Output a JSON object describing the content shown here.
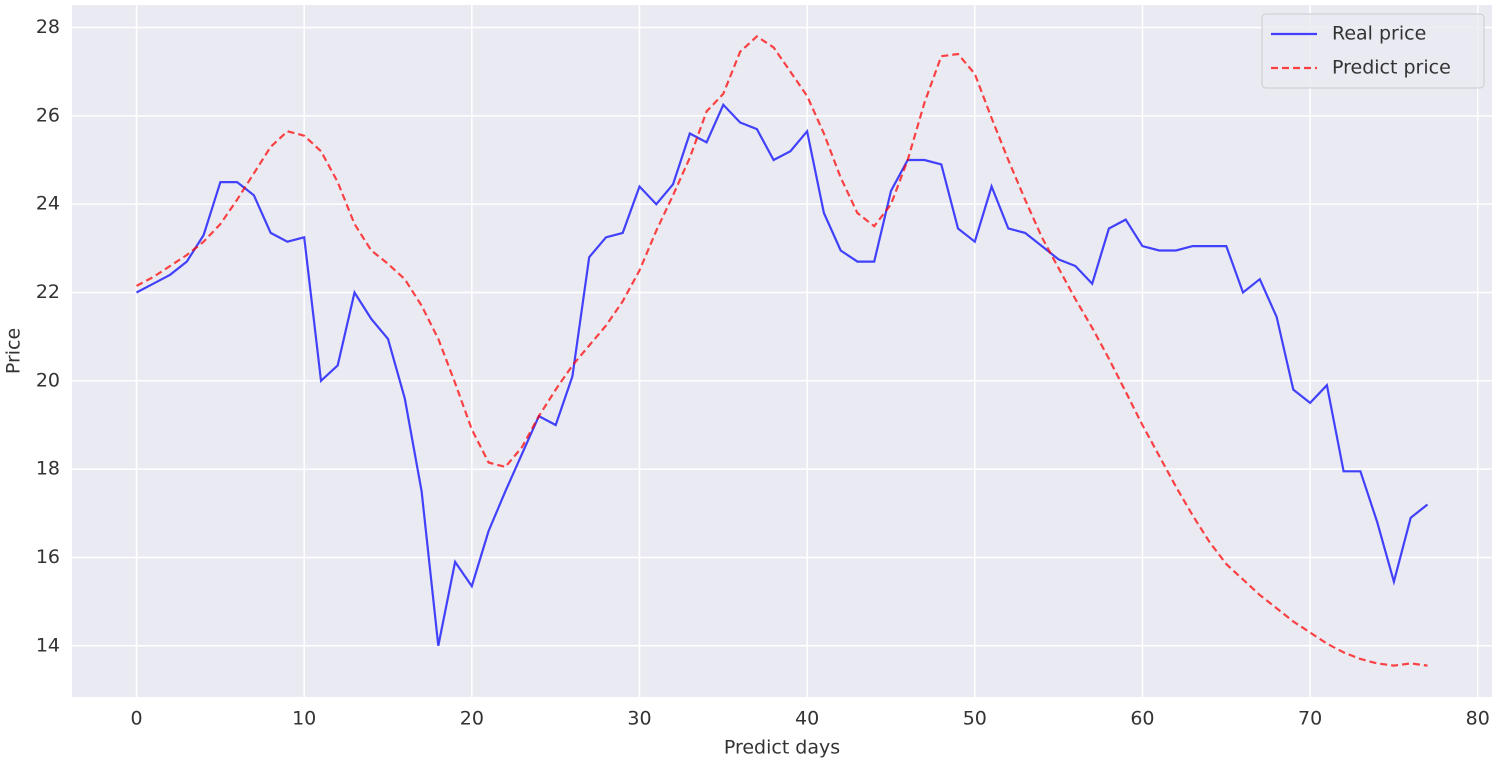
{
  "chart_data": {
    "type": "line",
    "x_label": "Predict days",
    "y_label": "Price",
    "x": [
      0,
      1,
      2,
      3,
      4,
      5,
      6,
      7,
      8,
      9,
      10,
      11,
      12,
      13,
      14,
      15,
      16,
      17,
      18,
      19,
      20,
      21,
      22,
      23,
      24,
      25,
      26,
      27,
      28,
      29,
      30,
      31,
      32,
      33,
      34,
      35,
      36,
      37,
      38,
      39,
      40,
      41,
      42,
      43,
      44,
      45,
      46,
      47,
      48,
      49,
      50,
      51,
      52,
      53,
      54,
      55,
      56,
      57,
      58,
      59,
      60,
      61,
      62,
      63,
      64,
      65,
      66,
      67,
      68,
      69,
      70,
      71,
      72,
      73,
      74,
      75,
      76,
      77
    ],
    "series": [
      {
        "name": "Real price",
        "color": "#0000ff",
        "dash": false,
        "values": [
          22.0,
          22.2,
          22.4,
          22.7,
          23.3,
          24.5,
          24.5,
          24.2,
          23.35,
          23.15,
          23.25,
          20.0,
          20.35,
          22.0,
          21.4,
          20.95,
          19.6,
          17.5,
          14.0,
          15.9,
          15.35,
          16.6,
          17.5,
          18.35,
          19.2,
          19.0,
          20.1,
          22.8,
          23.25,
          23.35,
          24.4,
          24.0,
          24.45,
          25.6,
          25.4,
          26.25,
          25.85,
          25.7,
          25.0,
          25.2,
          25.65,
          23.8,
          22.95,
          22.7,
          22.7,
          24.3,
          25.0,
          25.0,
          24.9,
          23.45,
          23.15,
          24.4,
          23.45,
          23.35,
          23.05,
          22.75,
          22.6,
          22.2,
          23.45,
          23.65,
          23.05,
          22.95,
          22.95,
          23.05,
          23.05,
          23.05,
          22.0,
          22.3,
          21.45,
          19.8,
          19.5,
          19.9,
          17.95,
          17.95,
          16.8,
          15.45,
          16.9,
          17.2
        ]
      },
      {
        "name": "Predict price",
        "color": "#ff0000",
        "dash": true,
        "values": [
          22.15,
          22.35,
          22.6,
          22.85,
          23.15,
          23.55,
          24.1,
          24.7,
          25.3,
          25.65,
          25.55,
          25.2,
          24.5,
          23.55,
          22.95,
          22.65,
          22.3,
          21.7,
          20.95,
          19.95,
          18.9,
          18.15,
          18.05,
          18.5,
          19.2,
          19.8,
          20.35,
          20.8,
          21.25,
          21.8,
          22.5,
          23.4,
          24.2,
          25.05,
          26.1,
          26.5,
          27.45,
          27.8,
          27.55,
          27.0,
          26.45,
          25.6,
          24.6,
          23.8,
          23.5,
          24.0,
          25.0,
          26.3,
          27.35,
          27.4,
          26.95,
          25.95,
          25.0,
          24.1,
          23.25,
          22.55,
          21.85,
          21.2,
          20.5,
          19.75,
          19.0,
          18.3,
          17.6,
          16.95,
          16.35,
          15.85,
          15.5,
          15.15,
          14.85,
          14.55,
          14.3,
          14.05,
          13.85,
          13.7,
          13.6,
          13.55,
          13.6,
          13.55
        ]
      }
    ],
    "xlim": [
      -3.85,
      80.85
    ],
    "ylim": [
      12.84,
      28.51
    ],
    "xticks": [
      0,
      10,
      20,
      30,
      40,
      50,
      60,
      70,
      80
    ],
    "yticks": [
      14,
      16,
      18,
      20,
      22,
      24,
      26,
      28
    ],
    "grid": true,
    "legend": "upper right"
  }
}
